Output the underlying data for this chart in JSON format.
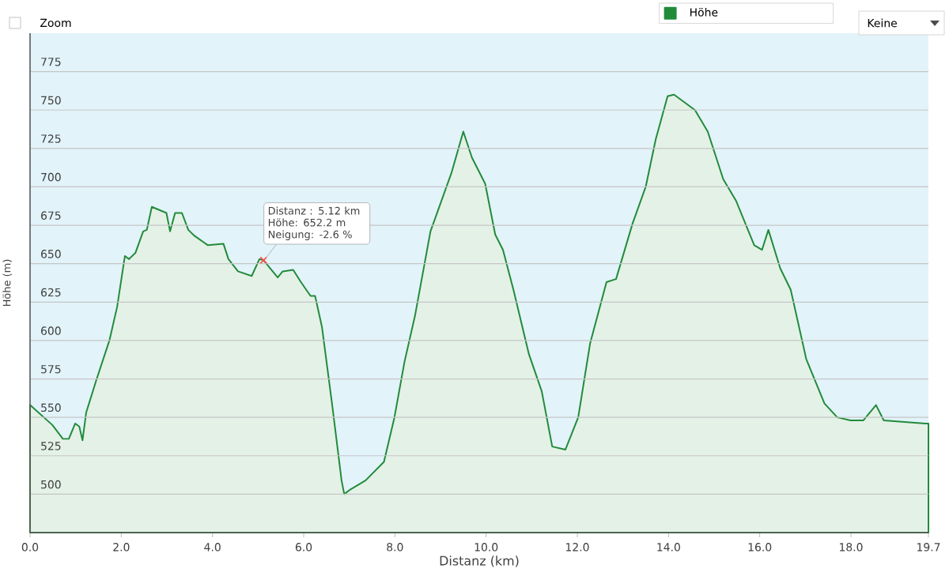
{
  "chart_data": {
    "type": "area",
    "xlabel": "Distanz  (km)",
    "ylabel": "Höhe (m)",
    "x": [
      0,
      0.49,
      0.72,
      0.85,
      0.99,
      1.08,
      1.15,
      1.23,
      1.45,
      1.74,
      1.91,
      2.08,
      2.17,
      2.31,
      2.48,
      2.56,
      2.67,
      2.99,
      3.07,
      3.18,
      3.33,
      3.47,
      3.61,
      3.9,
      4.24,
      4.35,
      4.56,
      4.86,
      5.03,
      5.12,
      5.43,
      5.54,
      5.77,
      5.94,
      6.15,
      6.25,
      6.4,
      6.63,
      6.83,
      6.89,
      7.02,
      7.36,
      7.76,
      7.99,
      8.21,
      8.44,
      8.78,
      9.24,
      9.5,
      9.69,
      9.98,
      10.2,
      10.37,
      10.6,
      10.94,
      11.22,
      11.45,
      11.74,
      12.02,
      12.28,
      12.64,
      12.85,
      13.21,
      13.5,
      13.72,
      13.98,
      14.12,
      14.58,
      14.86,
      15.2,
      15.48,
      15.88,
      16.05,
      16.19,
      16.45,
      16.68,
      17.02,
      17.42,
      17.7,
      17.99,
      18.27,
      18.55,
      18.72,
      19.63,
      19.7
    ],
    "series": [
      {
        "name": "Höhe",
        "color": "#228b3a",
        "values": [
          558,
          545,
          536,
          536,
          546,
          544,
          535,
          553,
          574,
          600,
          622,
          655,
          653,
          657,
          671,
          672,
          687,
          683,
          671,
          683,
          683,
          672,
          668,
          662,
          663,
          653,
          645,
          642,
          653,
          652.2,
          641,
          645,
          646,
          638,
          629,
          629,
          609,
          557,
          509,
          500,
          503,
          509,
          521,
          550,
          586,
          616,
          671,
          709,
          736,
          719,
          702,
          669,
          659,
          633,
          591,
          567,
          531,
          529,
          550,
          598,
          638,
          640,
          676,
          700,
          731,
          759,
          760,
          750,
          736,
          705,
          691,
          662,
          659,
          672,
          647,
          633,
          588,
          559,
          550,
          548,
          548,
          558,
          548,
          546,
          546
        ]
      }
    ],
    "xlim": [
      0,
      19.7
    ],
    "ylim": [
      475,
      800
    ],
    "xticks": [
      {
        "value": 0,
        "label": "0.0"
      },
      {
        "value": 2,
        "label": "2.0"
      },
      {
        "value": 4,
        "label": "4.0"
      },
      {
        "value": 6,
        "label": "6.0"
      },
      {
        "value": 8,
        "label": "8.0"
      },
      {
        "value": 10,
        "label": "10.0"
      },
      {
        "value": 12,
        "label": "12.0"
      },
      {
        "value": 14,
        "label": "14.0"
      },
      {
        "value": 16,
        "label": "16.0"
      },
      {
        "value": 18,
        "label": "18.0"
      },
      {
        "value": 19.7,
        "label": "19.7"
      }
    ],
    "yticks": [
      500,
      525,
      550,
      575,
      600,
      625,
      650,
      675,
      700,
      725,
      750,
      775
    ],
    "grid": "y",
    "legend": "top right",
    "annotations": [
      {
        "text": "Distanz : 5.12 km Höhe: 652.2 m Neigung: -2.6 %",
        "x": 5.12,
        "y": 652.2
      },
      "Zoom",
      "Keine"
    ]
  }
}
